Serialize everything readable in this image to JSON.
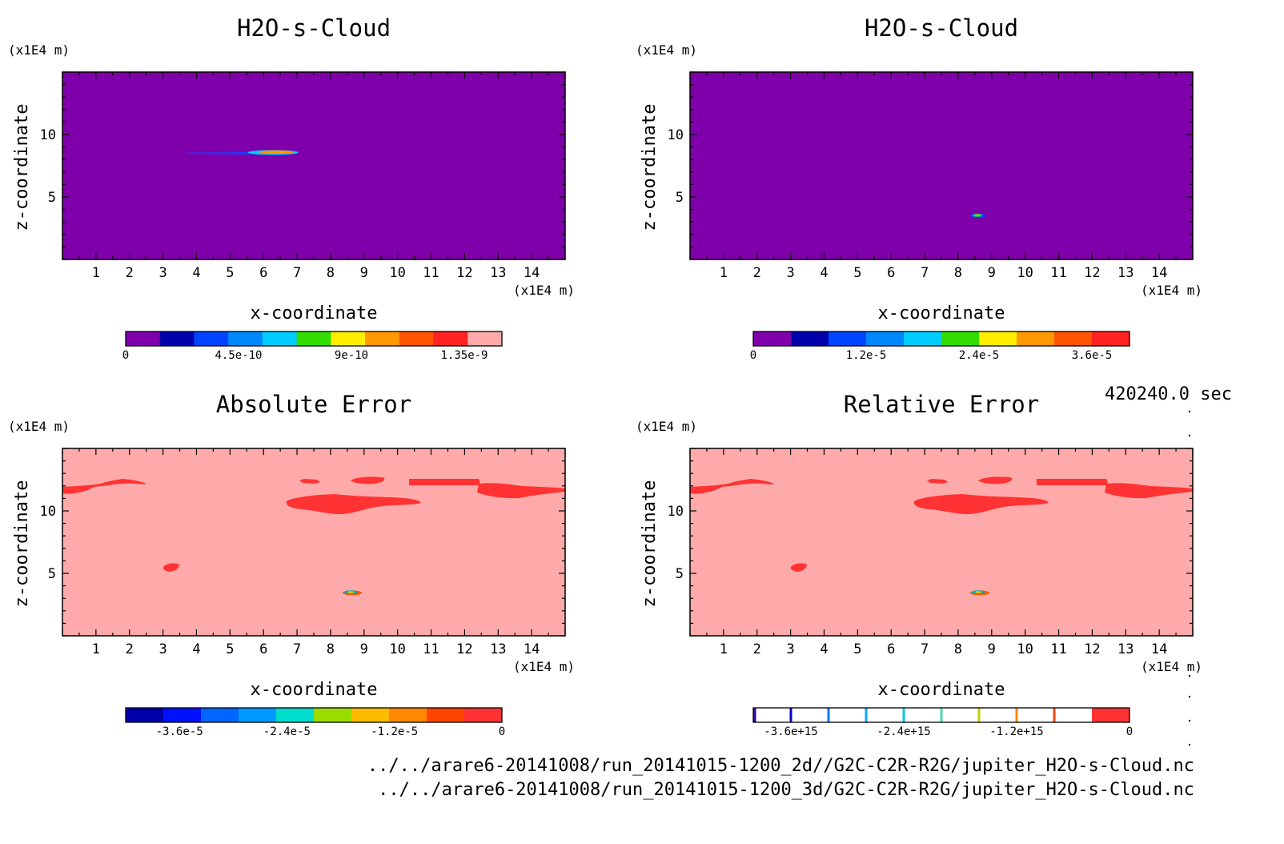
{
  "time_label": "420240.0 sec",
  "files": [
    "../../arare6-20141008/run_20141015-1200_2d//G2C-C2R-R2G/jupiter_H2O-s-Cloud.nc",
    "../../arare6-20141008/run_20141015-1200_3d/G2C-C2R-R2G/jupiter_H2O-s-Cloud.nc"
  ],
  "chart_data": [
    {
      "type": "heatmap",
      "title": "H2O-s-Cloud",
      "xlabel": "x-coordinate",
      "ylabel": "z-coordinate",
      "x_unit": "(x1E4 m)",
      "z_unit": "(x1E4 m)",
      "xlim": [
        0,
        15
      ],
      "zlim": [
        0,
        15
      ],
      "x_ticks": [
        1,
        2,
        3,
        4,
        5,
        6,
        7,
        8,
        9,
        10,
        11,
        12,
        13,
        14
      ],
      "z_ticks": [
        5,
        10
      ],
      "background_color": "#7f00aa",
      "colorbar": {
        "colors": [
          "#7f00aa",
          "#0000aa",
          "#0044ff",
          "#0088ff",
          "#00ccff",
          "#33dd00",
          "#ffee00",
          "#ff9900",
          "#ff5500",
          "#ff2222",
          "#ffaaaa"
        ],
        "tick_labels": [
          "0",
          "4.5e-10",
          "9e-10",
          "1.35e-9"
        ],
        "tick_values": [
          0,
          4.5e-10,
          9e-10,
          1.35e-09
        ],
        "range": [
          0,
          1.5e-09
        ]
      },
      "features": [
        {
          "x": [
            3.7,
            6.9
          ],
          "z": 8.5,
          "color": "#1a3cff",
          "description": "thin cloud layer"
        },
        {
          "x": [
            5.2,
            6.9
          ],
          "z": 8.5,
          "color": "#ff9900"
        }
      ]
    },
    {
      "type": "heatmap",
      "title": "H2O-s-Cloud",
      "xlabel": "x-coordinate",
      "ylabel": "z-coordinate",
      "x_unit": "(x1E4 m)",
      "z_unit": "(x1E4 m)",
      "xlim": [
        0,
        15
      ],
      "zlim": [
        0,
        15
      ],
      "x_ticks": [
        1,
        2,
        3,
        4,
        5,
        6,
        7,
        8,
        9,
        10,
        11,
        12,
        13,
        14
      ],
      "z_ticks": [
        5,
        10
      ],
      "background_color": "#7f00aa",
      "colorbar": {
        "colors": [
          "#7f00aa",
          "#0000aa",
          "#0044ff",
          "#0088ff",
          "#00ccff",
          "#33dd00",
          "#ffee00",
          "#ff9900",
          "#ff5500",
          "#ff2222"
        ],
        "tick_labels": [
          "0",
          "1.2e-5",
          "2.4e-5",
          "3.6e-5"
        ],
        "tick_values": [
          0,
          1.2e-05,
          2.4e-05,
          3.6e-05
        ],
        "range": [
          0,
          4e-05
        ]
      },
      "features": [
        {
          "x": [
            8.3,
            8.9
          ],
          "z": 3.5,
          "color": "#ff9900"
        }
      ]
    },
    {
      "type": "heatmap",
      "title": "Absolute Error",
      "xlabel": "x-coordinate",
      "ylabel": "z-coordinate",
      "x_unit": "(x1E4 m)",
      "z_unit": "(x1E4 m)",
      "xlim": [
        0,
        15
      ],
      "zlim": [
        0,
        15
      ],
      "x_ticks": [
        1,
        2,
        3,
        4,
        5,
        6,
        7,
        8,
        9,
        10,
        11,
        12,
        13,
        14
      ],
      "z_ticks": [
        5,
        10
      ],
      "background_color": "#ffaaaa",
      "colorbar": {
        "colors": [
          "#0000aa",
          "#0011ff",
          "#0066ff",
          "#0099ff",
          "#00ddcc",
          "#99dd00",
          "#ffbb00",
          "#ff8800",
          "#ff4400",
          "#ff3333"
        ],
        "tick_labels": [
          "-3.6e-5",
          "-2.4e-5",
          "-1.2e-5",
          "0"
        ],
        "tick_values": [
          -3.6e-05,
          -2.4e-05,
          -1.2e-05,
          0
        ],
        "range": [
          -4.2e-05,
          0
        ]
      }
    },
    {
      "type": "heatmap",
      "title": "Relative Error",
      "xlabel": "x-coordinate",
      "ylabel": "z-coordinate",
      "x_unit": "(x1E4 m)",
      "z_unit": "(x1E4 m)",
      "xlim": [
        0,
        15
      ],
      "zlim": [
        0,
        15
      ],
      "x_ticks": [
        1,
        2,
        3,
        4,
        5,
        6,
        7,
        8,
        9,
        10,
        11,
        12,
        13,
        14
      ],
      "z_ticks": [
        5,
        10
      ],
      "background_color": "#ffaaaa",
      "colorbar": {
        "colors": [
          "#ffffff",
          "#ffffff",
          "#ffffff",
          "#ffffff",
          "#ffffff",
          "#ffffff",
          "#ffffff",
          "#ffffff",
          "#ffffff",
          "#ff3333"
        ],
        "line_colors": [
          "#3300aa",
          "#0000cc",
          "#0077ff",
          "#00aaff",
          "#00ccdd",
          "#44ddaa",
          "#cccc00",
          "#ff8800",
          "#ff4400"
        ],
        "tick_labels": [
          "-3.6e+15",
          "-2.4e+15",
          "-1.2e+15",
          "0"
        ],
        "tick_values": [
          -3600000000000000.0,
          -2400000000000000.0,
          -1200000000000000.0,
          0
        ],
        "range": [
          -4000000000000000.0,
          0
        ]
      }
    }
  ]
}
